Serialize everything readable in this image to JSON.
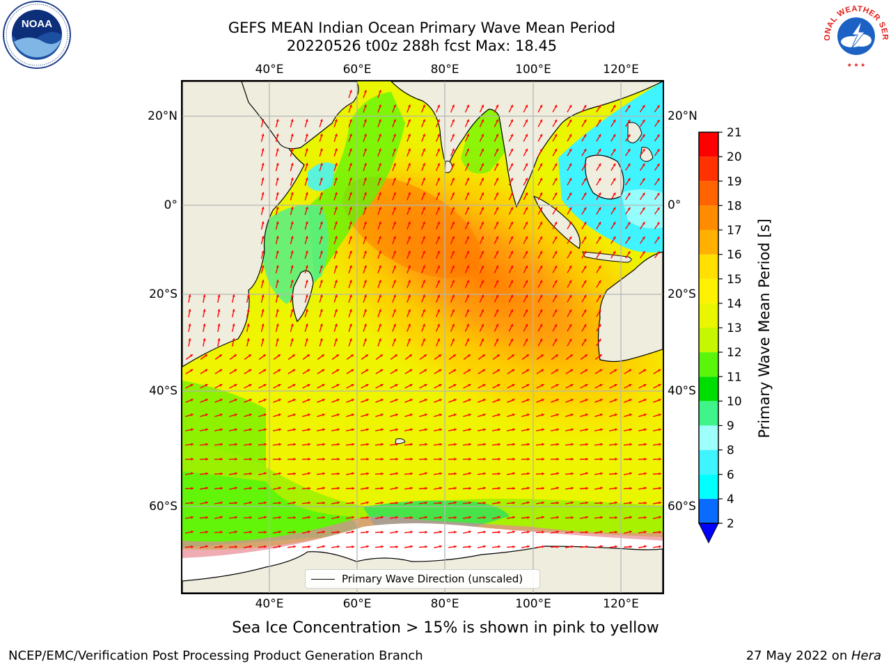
{
  "header": {
    "title_line1": "GEFS MEAN Indian Ocean Primary Wave Mean Period",
    "title_line2": "20220526 t00z 288h fcst   Max: 18.45"
  },
  "logos": {
    "left": {
      "text": "NOAA",
      "icon": "noaa-logo-icon"
    },
    "right": {
      "text": "NATIONAL WEATHER SERVICE",
      "icon": "nws-logo-icon"
    }
  },
  "map": {
    "lon_labels_top": [
      "40°E",
      "60°E",
      "80°E",
      "100°E",
      "120°E"
    ],
    "lon_labels_bottom": [
      "40°E",
      "60°E",
      "80°E",
      "100°E",
      "120°E"
    ],
    "lat_labels_left": [
      "20°N",
      "0°",
      "20°S",
      "40°S",
      "60°S"
    ],
    "lat_labels_right": [
      "20°N",
      "0°",
      "20°S",
      "40°S",
      "60°S"
    ],
    "legend_label": "Primary Wave Direction (unscaled)",
    "land_color": "#efedde",
    "coast_color": "#000000",
    "vector_color": "#ff0000"
  },
  "colorbar": {
    "label": "Primary Wave Mean Period [s]",
    "ticks": [
      "2",
      "4",
      "6",
      "8",
      "9",
      "10",
      "11",
      "12",
      "13",
      "14",
      "15",
      "16",
      "17",
      "18",
      "19",
      "20",
      "21"
    ],
    "colors": [
      "#0a6bff",
      "#00ffff",
      "#3ff3ff",
      "#9ffffc",
      "#3ff58a",
      "#00dd00",
      "#5af50a",
      "#c7f700",
      "#eaf500",
      "#fff200",
      "#ffe000",
      "#ffb000",
      "#ff8c00",
      "#ff6400",
      "#ff3200",
      "#ff0000"
    ],
    "extend_color": "#0000ff"
  },
  "caption": "Sea Ice Concentration > 15% is shown in pink to yellow",
  "footer": {
    "left": "NCEP/EMC/Verification Post Processing Product Generation Branch",
    "right_prefix": "27 May 2022 on ",
    "right_italic": "Hera"
  }
}
